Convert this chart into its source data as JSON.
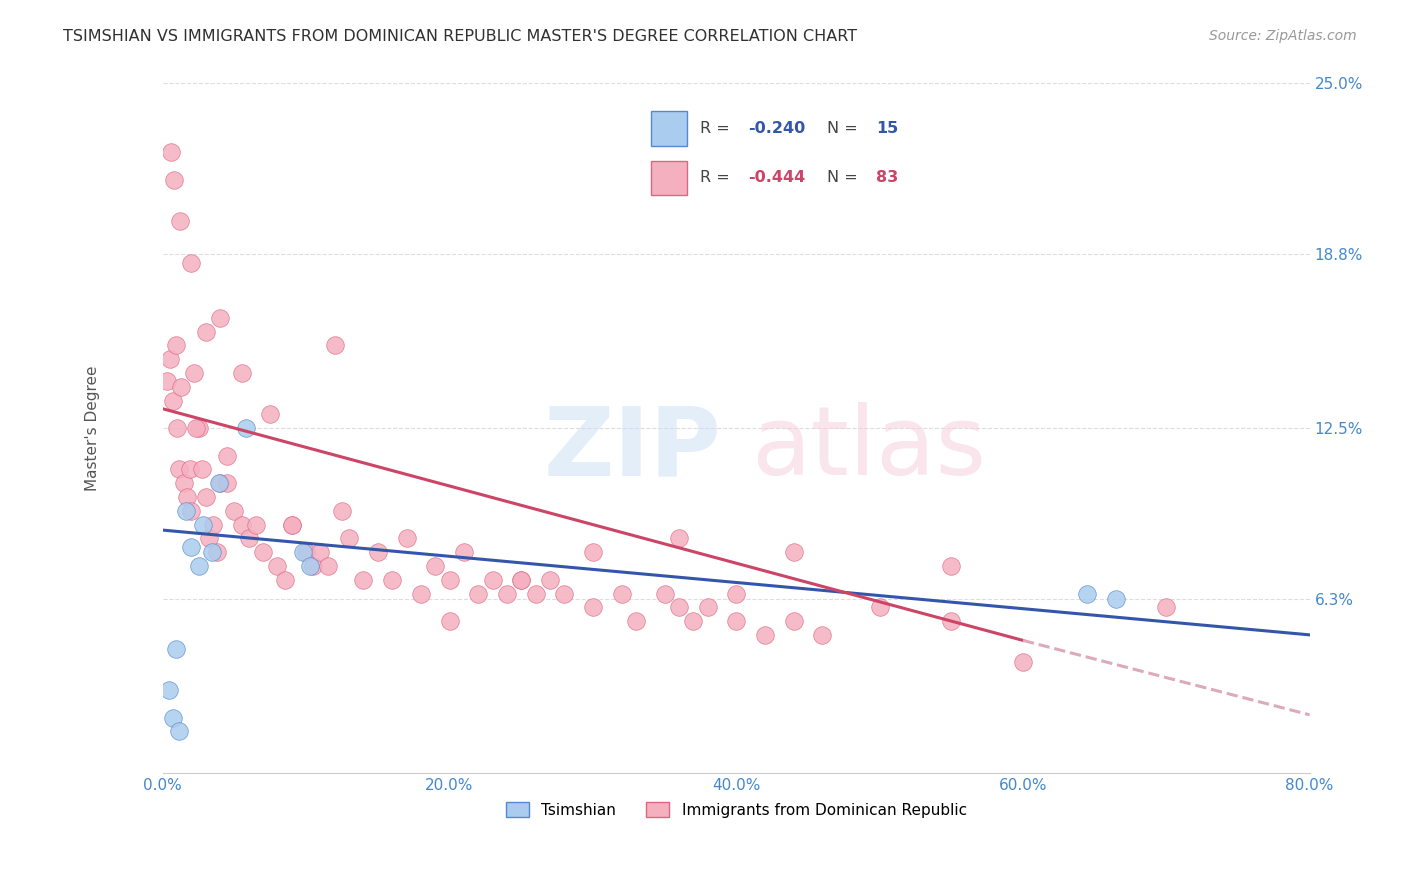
{
  "title": "TSIMSHIAN VS IMMIGRANTS FROM DOMINICAN REPUBLIC MASTER'S DEGREE CORRELATION CHART",
  "source": "Source: ZipAtlas.com",
  "ylabel": "Master's Degree",
  "xlim": [
    0.0,
    80.0
  ],
  "ylim": [
    0.0,
    25.0
  ],
  "xtick_vals": [
    0.0,
    20.0,
    40.0,
    60.0,
    80.0
  ],
  "xtick_labels": [
    "0.0%",
    "20.0%",
    "40.0%",
    "60.0%",
    "80.0%"
  ],
  "ytick_vals": [
    6.3,
    12.5,
    18.8,
    25.0
  ],
  "ytick_labels": [
    "6.3%",
    "12.5%",
    "18.8%",
    "25.0%"
  ],
  "series1_label": "Tsimshian",
  "series1_color": "#aaccee",
  "series1_edge": "#5588cc",
  "series1_R": "-0.240",
  "series1_N": "15",
  "series2_label": "Immigrants from Dominican Republic",
  "series2_color": "#f5b0c0",
  "series2_edge": "#dd6680",
  "series2_R": "-0.444",
  "series2_N": "83",
  "regression1_color": "#3355aa",
  "regression1_start_x": 0.0,
  "regression1_start_y": 8.8,
  "regression1_end_x": 80.0,
  "regression1_end_y": 5.0,
  "regression2_color": "#cc4466",
  "regression2_start_x": 0.0,
  "regression2_start_y": 13.2,
  "regression2_solid_end_x": 60.0,
  "regression2_solid_end_y": 4.8,
  "regression2_dash_end_x": 80.0,
  "regression2_dash_end_y": 2.1,
  "regression2_dash_color": "#ddaabb",
  "title_color": "#303030",
  "axis_tick_color": "#4488cc",
  "ylabel_color": "#555555",
  "grid_color": "#dddddd",
  "bg_color": "#ffffff",
  "source_color": "#999999",
  "watermark_zip_color": "#cce0f5",
  "watermark_atlas_color": "#f5d0dc",
  "tsimshian_x": [
    0.4,
    0.7,
    0.9,
    1.1,
    1.6,
    2.0,
    2.5,
    2.8,
    3.4,
    3.9,
    5.8,
    9.8,
    10.3,
    64.5,
    66.5
  ],
  "tsimshian_y": [
    3.0,
    2.0,
    4.5,
    1.5,
    9.5,
    8.2,
    7.5,
    9.0,
    8.0,
    10.5,
    12.5,
    8.0,
    7.5,
    6.5,
    6.3
  ],
  "dominican_x": [
    0.3,
    0.5,
    0.7,
    0.8,
    1.0,
    1.1,
    1.3,
    1.5,
    1.7,
    1.9,
    2.0,
    2.2,
    2.5,
    2.7,
    3.0,
    3.2,
    3.5,
    3.8,
    4.0,
    4.5,
    5.0,
    5.5,
    6.0,
    6.5,
    7.0,
    8.0,
    8.5,
    9.0,
    10.0,
    10.5,
    11.0,
    11.5,
    12.0,
    13.0,
    14.0,
    15.0,
    16.0,
    17.0,
    18.0,
    19.0,
    20.0,
    21.0,
    22.0,
    23.0,
    24.0,
    25.0,
    26.0,
    27.0,
    28.0,
    30.0,
    32.0,
    33.0,
    35.0,
    36.0,
    37.0,
    38.0,
    40.0,
    42.0,
    44.0,
    46.0,
    50.0,
    55.0,
    0.6,
    1.2,
    2.0,
    3.0,
    4.0,
    5.5,
    7.5,
    12.5,
    25.0,
    36.0,
    44.0,
    60.0,
    0.9,
    2.3,
    4.5,
    9.0,
    20.0,
    30.0,
    40.0,
    55.0,
    70.0
  ],
  "dominican_y": [
    14.2,
    15.0,
    13.5,
    21.5,
    12.5,
    11.0,
    14.0,
    10.5,
    10.0,
    11.0,
    9.5,
    14.5,
    12.5,
    11.0,
    10.0,
    8.5,
    9.0,
    8.0,
    10.5,
    11.5,
    9.5,
    9.0,
    8.5,
    9.0,
    8.0,
    7.5,
    7.0,
    9.0,
    8.0,
    7.5,
    8.0,
    7.5,
    15.5,
    8.5,
    7.0,
    8.0,
    7.0,
    8.5,
    6.5,
    7.5,
    7.0,
    8.0,
    6.5,
    7.0,
    6.5,
    7.0,
    6.5,
    7.0,
    6.5,
    6.0,
    6.5,
    5.5,
    6.5,
    6.0,
    5.5,
    6.0,
    5.5,
    5.0,
    5.5,
    5.0,
    6.0,
    5.5,
    22.5,
    20.0,
    18.5,
    16.0,
    16.5,
    14.5,
    13.0,
    9.5,
    7.0,
    8.5,
    8.0,
    4.0,
    15.5,
    12.5,
    10.5,
    9.0,
    5.5,
    8.0,
    6.5,
    7.5,
    6.0
  ]
}
